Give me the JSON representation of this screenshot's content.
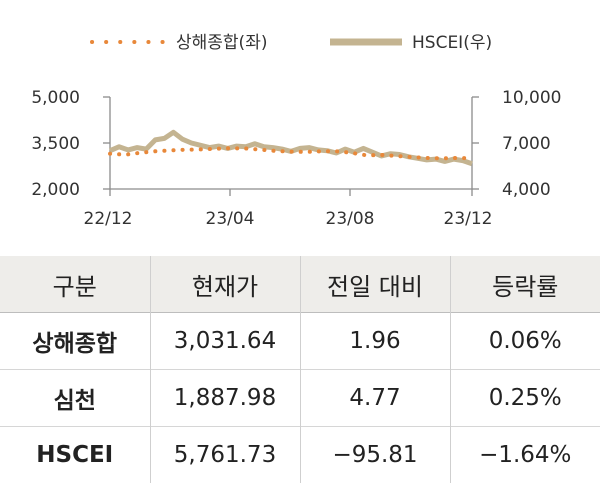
{
  "chart_data": {
    "type": "line",
    "legend": [
      {
        "name": "상해종합(좌)",
        "style": "dotted",
        "color": "#e8883a"
      },
      {
        "name": "HSCEI(우)",
        "style": "solid",
        "color": "#c4b491"
      }
    ],
    "legend_position": "top-center",
    "x_ticks": [
      "22/12",
      "23/04",
      "23/08",
      "23/12"
    ],
    "y_left": {
      "ticks": [
        "5,000",
        "3,500",
        "2,000"
      ],
      "range": [
        2000,
        5000
      ]
    },
    "y_right": {
      "ticks": [
        "10,000",
        "7,000",
        "4,000"
      ],
      "range": [
        4000,
        10000
      ]
    },
    "x_range": [
      0,
      12
    ],
    "grid": false,
    "series": [
      {
        "name": "상해종합(좌)",
        "axis": "left",
        "x": [
          0,
          0.5,
          1,
          1.5,
          2,
          2.5,
          3,
          3.5,
          4,
          4.5,
          5,
          5.5,
          6,
          6.5,
          7,
          7.5,
          8,
          8.5,
          9,
          9.5,
          10,
          10.5,
          11,
          11.5,
          12
        ],
        "values": [
          3150,
          3120,
          3180,
          3230,
          3260,
          3280,
          3290,
          3310,
          3330,
          3320,
          3280,
          3240,
          3220,
          3210,
          3230,
          3230,
          3180,
          3100,
          3110,
          3080,
          3040,
          3010,
          3000,
          3010,
          3000
        ]
      },
      {
        "name": "HSCEI(우)",
        "axis": "right",
        "x": [
          0,
          0.3,
          0.6,
          0.9,
          1.2,
          1.5,
          1.8,
          2.1,
          2.4,
          2.7,
          3.0,
          3.3,
          3.6,
          3.9,
          4.2,
          4.5,
          4.8,
          5.1,
          5.4,
          5.7,
          6.0,
          6.3,
          6.6,
          6.9,
          7.2,
          7.5,
          7.8,
          8.1,
          8.4,
          8.7,
          9.0,
          9.3,
          9.6,
          9.9,
          10.2,
          10.5,
          10.8,
          11.1,
          11.4,
          11.7,
          12.0
        ],
        "values": [
          6500,
          6750,
          6550,
          6700,
          6600,
          7200,
          7300,
          7700,
          7250,
          7000,
          6850,
          6700,
          6800,
          6650,
          6800,
          6750,
          6950,
          6750,
          6700,
          6600,
          6450,
          6650,
          6700,
          6550,
          6500,
          6350,
          6600,
          6400,
          6650,
          6400,
          6150,
          6300,
          6250,
          6100,
          6000,
          5900,
          5950,
          5800,
          5950,
          5850,
          5650
        ]
      }
    ]
  },
  "table": {
    "headers": [
      "구분",
      "현재가",
      "전일 대비",
      "등락률"
    ],
    "rows": [
      {
        "name": "상해종합",
        "price": "3,031.64",
        "change": "1.96",
        "rate": "0.06%"
      },
      {
        "name": "심천",
        "price": "1,887.98",
        "change": "4.77",
        "rate": "0.25%"
      },
      {
        "name": "HSCEI",
        "price": "5,761.73",
        "change": "−95.81",
        "rate": "−1.64%"
      }
    ]
  }
}
